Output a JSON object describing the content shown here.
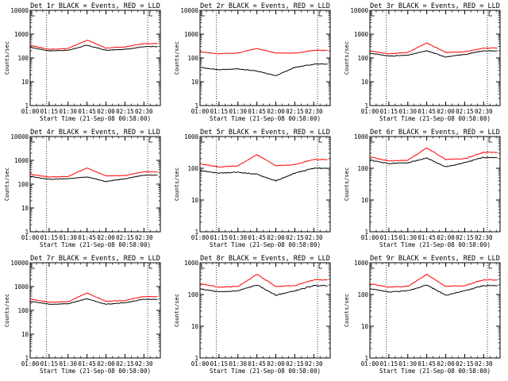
{
  "chart_data": [
    {
      "type": "line",
      "title": "Det 1r BLACK = Events, RED = LLD",
      "xlabel": "Start Time (21-Sep-08 00:58:00)",
      "ylabel": "Counts/sec",
      "yscale": "log",
      "ylim": [
        1,
        10000
      ],
      "x": [
        "01:00",
        "01:15",
        "01:30",
        "01:45",
        "02:00",
        "02:15",
        "02:30"
      ],
      "series": [
        {
          "color": "#000000",
          "values": [
            280,
            200,
            210,
            340,
            210,
            230,
            300
          ]
        },
        {
          "color": "#ff0000",
          "values": [
            340,
            230,
            250,
            560,
            260,
            290,
            400
          ]
        }
      ]
    },
    {
      "type": "line",
      "title": "Det 2r BLACK = Events, RED = LLD",
      "xlabel": "Start Time (21-Sep-08 00:58:00)",
      "ylabel": "Counts/sec",
      "yscale": "log",
      "ylim": [
        1,
        10000
      ],
      "x": [
        "01:00",
        "01:15",
        "01:30",
        "01:45",
        "02:00",
        "02:15",
        "02:30"
      ],
      "series": [
        {
          "color": "#000000",
          "values": [
            40,
            32,
            35,
            28,
            18,
            40,
            55
          ]
        },
        {
          "color": "#ff0000",
          "values": [
            180,
            150,
            160,
            250,
            160,
            160,
            210
          ]
        }
      ]
    },
    {
      "type": "line",
      "title": "Det 3r BLACK = Events, RED = LLD",
      "xlabel": "Start Time (21-Sep-08 00:58:00)",
      "ylabel": "Counts/sec",
      "yscale": "log",
      "ylim": [
        1,
        10000
      ],
      "x": [
        "01:00",
        "01:15",
        "01:30",
        "01:45",
        "02:00",
        "02:15",
        "02:30"
      ],
      "series": [
        {
          "color": "#000000",
          "values": [
            160,
            120,
            130,
            200,
            110,
            140,
            200
          ]
        },
        {
          "color": "#ff0000",
          "values": [
            200,
            150,
            170,
            430,
            170,
            180,
            260
          ]
        }
      ]
    },
    {
      "type": "line",
      "title": "Det 4r BLACK = Events, RED = LLD",
      "xlabel": "Start Time (21-Sep-08 00:58:00)",
      "ylabel": "Counts/sec",
      "yscale": "log",
      "ylim": [
        1,
        10000
      ],
      "x": [
        "01:00",
        "01:15",
        "01:30",
        "01:45",
        "02:00",
        "02:15",
        "02:30"
      ],
      "series": [
        {
          "color": "#000000",
          "values": [
            210,
            160,
            170,
            200,
            130,
            170,
            240
          ]
        },
        {
          "color": "#ff0000",
          "values": [
            260,
            200,
            210,
            480,
            220,
            230,
            330
          ]
        }
      ]
    },
    {
      "type": "line",
      "title": "Det 5r BLACK = Events, RED = LLD",
      "xlabel": "Start Time (21-Sep-08 00:58:00)",
      "ylabel": "Counts/sec",
      "yscale": "log",
      "ylim": [
        1,
        1000
      ],
      "x": [
        "01:00",
        "01:15",
        "01:30",
        "01:45",
        "02:00",
        "02:15",
        "02:30"
      ],
      "series": [
        {
          "color": "#000000",
          "values": [
            85,
            70,
            75,
            65,
            40,
            70,
            100
          ]
        },
        {
          "color": "#ff0000",
          "values": [
            140,
            110,
            120,
            270,
            120,
            130,
            190
          ]
        }
      ]
    },
    {
      "type": "line",
      "title": "Det 6r BLACK = Events, RED = LLD",
      "xlabel": "Start Time (21-Sep-08 00:58:00)",
      "ylabel": "Counts/sec",
      "yscale": "log",
      "ylim": [
        1,
        1000
      ],
      "x": [
        "01:00",
        "01:15",
        "01:30",
        "01:45",
        "02:00",
        "02:15",
        "02:30"
      ],
      "series": [
        {
          "color": "#000000",
          "values": [
            180,
            140,
            150,
            210,
            110,
            150,
            220
          ]
        },
        {
          "color": "#ff0000",
          "values": [
            230,
            170,
            180,
            440,
            190,
            200,
            320
          ]
        }
      ]
    },
    {
      "type": "line",
      "title": "Det 7r BLACK = Events, RED = LLD",
      "xlabel": "Start Time (21-Sep-08 00:58:00)",
      "ylabel": "Counts/sec",
      "yscale": "log",
      "ylim": [
        1,
        10000
      ],
      "x": [
        "01:00",
        "01:15",
        "01:30",
        "01:45",
        "02:00",
        "02:15",
        "02:30"
      ],
      "series": [
        {
          "color": "#000000",
          "values": [
            240,
            180,
            190,
            310,
            180,
            210,
            290
          ]
        },
        {
          "color": "#ff0000",
          "values": [
            300,
            220,
            230,
            540,
            240,
            260,
            380
          ]
        }
      ]
    },
    {
      "type": "line",
      "title": "Det 8r BLACK = Events, RED = LLD",
      "xlabel": "Start Time (21-Sep-08 00:58:00)",
      "ylabel": "Counts/sec",
      "yscale": "log",
      "ylim": [
        1,
        1000
      ],
      "x": [
        "01:00",
        "01:15",
        "01:30",
        "01:45",
        "02:00",
        "02:15",
        "02:30"
      ],
      "series": [
        {
          "color": "#000000",
          "values": [
            150,
            120,
            130,
            200,
            95,
            130,
            190
          ]
        },
        {
          "color": "#ff0000",
          "values": [
            220,
            170,
            180,
            430,
            180,
            190,
            290
          ]
        }
      ]
    },
    {
      "type": "line",
      "title": "Det 9r BLACK = Events, RED = LLD",
      "xlabel": "Start Time (21-Sep-08 00:58:00)",
      "ylabel": "Counts/sec",
      "yscale": "log",
      "ylim": [
        1,
        1000
      ],
      "x": [
        "01:00",
        "01:15",
        "01:30",
        "01:45",
        "02:00",
        "02:15",
        "02:30"
      ],
      "series": [
        {
          "color": "#000000",
          "values": [
            150,
            120,
            130,
            200,
            95,
            130,
            190
          ]
        },
        {
          "color": "#ff0000",
          "values": [
            220,
            170,
            180,
            430,
            180,
            190,
            290
          ]
        }
      ]
    }
  ]
}
